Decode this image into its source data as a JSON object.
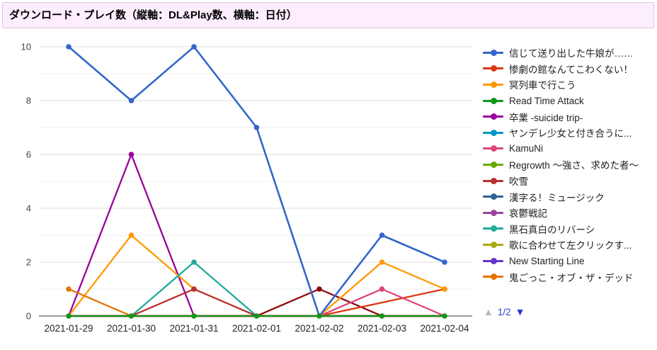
{
  "title": "ダウンロード・プレイ数（縦軸：DL&Play数、横軸：日付）",
  "colors": {
    "title_bg": "#fdeefd",
    "title_border": "#dfc5df",
    "axis_text": "#444444",
    "x_label_text": "#222222",
    "baseline": "#333333",
    "gridline_major": "#dedede",
    "gridline_minor": "#f2f2f2",
    "pagination_up": "#b8b8b8",
    "pagination_label": "#2c47c8",
    "pagination_down": "#2432cf"
  },
  "legend": {
    "pagination": {
      "up": "▲",
      "label": "1/2",
      "down": "▼"
    }
  },
  "chart_data": {
    "type": "line",
    "title": "ダウンロード・プレイ数（縦軸：DL&Play数、横軸：日付）",
    "xlabel": "日付",
    "ylabel": "DL&Play数",
    "x": [
      "2021-01-29",
      "2021-01-30",
      "2021-01-31",
      "2021-02-01",
      "2021-02-02",
      "2021-02-03",
      "2021-02-04"
    ],
    "ylim": [
      0,
      10
    ],
    "yticks": [
      0,
      2,
      4,
      6,
      8,
      10
    ],
    "grid": "horizontal-major-and-minor",
    "legend_position": "right",
    "series": [
      {
        "name": "信じて送り出した牛娘が……",
        "color": "#3366cc",
        "values": [
          10,
          8,
          10,
          7,
          0,
          3,
          2
        ]
      },
      {
        "name": "惨劇の館なんてこわくない！",
        "color": "#dc3912",
        "values": [
          0,
          0,
          0,
          0,
          0,
          null,
          1
        ]
      },
      {
        "name": "冥列車で行こう",
        "color": "#ff9900",
        "values": [
          0,
          3,
          1,
          0,
          0,
          2,
          1
        ]
      },
      {
        "name": "Read Time Attack",
        "color": "#109618",
        "values": [
          0,
          0,
          0,
          0,
          0,
          0,
          0
        ]
      },
      {
        "name": "卒業 -suicide trip-",
        "color": "#990099",
        "values": [
          0,
          6,
          0,
          0,
          0,
          0,
          0
        ]
      },
      {
        "name": "ヤンデレ少女と付き合うに...",
        "color": "#0099c6",
        "values": [
          0,
          0,
          0,
          0,
          0,
          0,
          0
        ]
      },
      {
        "name": "KamuNi",
        "color": "#dd4477",
        "values": [
          0,
          0,
          0,
          0,
          0,
          1,
          0
        ]
      },
      {
        "name": "Regrowth ～強さ、求めた者～",
        "color": "#66aa00",
        "values": [
          0,
          0,
          0,
          0,
          0,
          0,
          0
        ]
      },
      {
        "name": "吹雪",
        "color": "#b82e2e",
        "values": [
          0,
          0,
          1,
          0,
          0,
          0,
          0
        ]
      },
      {
        "name": "漢字る！ミュージック",
        "color": "#316395",
        "values": [
          0,
          0,
          0,
          0,
          0,
          0,
          0
        ]
      },
      {
        "name": "哀鬱戦記",
        "color": "#994499",
        "values": [
          0,
          0,
          0,
          0,
          0,
          0,
          0
        ]
      },
      {
        "name": "黒石真白のリバーシ",
        "color": "#22aa99",
        "values": [
          0,
          0,
          2,
          0,
          0,
          0,
          0
        ]
      },
      {
        "name": "歌に合わせて左クリックす...",
        "color": "#aaaa11",
        "values": [
          0,
          0,
          0,
          0,
          0,
          0,
          0
        ]
      },
      {
        "name": "New Starting Line",
        "color": "#6633cc",
        "values": [
          0,
          0,
          0,
          0,
          0,
          0,
          0
        ]
      },
      {
        "name": "鬼ごっこ・オブ・ザ・デッド",
        "color": "#e67300",
        "values": [
          1,
          0,
          0,
          0,
          0,
          0,
          0
        ]
      },
      {
        "name": "",
        "color": "#8b0707",
        "values": [
          0,
          0,
          0,
          0,
          1,
          0,
          0
        ],
        "in_legend": false
      }
    ]
  }
}
